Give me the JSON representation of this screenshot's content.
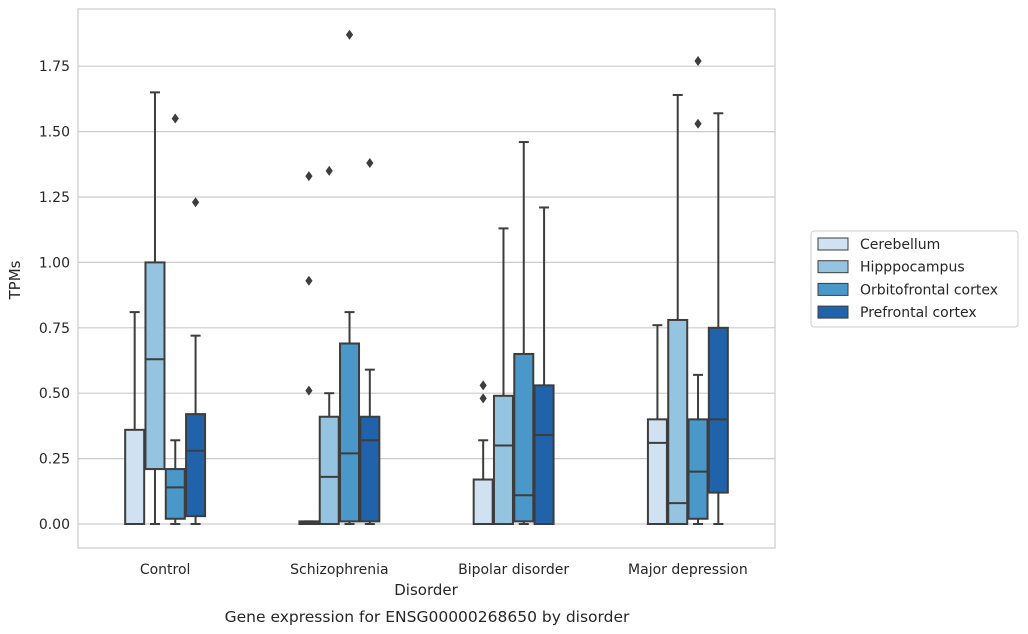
{
  "chart_data": {
    "type": "box",
    "title": "",
    "caption": "Gene expression for ENSG00000268650 by disorder",
    "xlabel": "Disorder",
    "ylabel": "TPMs",
    "ylim": [
      -0.09,
      1.97
    ],
    "yticks": [
      "0.00",
      "0.25",
      "0.50",
      "0.75",
      "1.00",
      "1.25",
      "1.50",
      "1.75"
    ],
    "grid": "horizontal",
    "legend_position": "right",
    "categories": [
      "Control",
      "Schizophrenia",
      "Bipolar disorder",
      "Major depression"
    ],
    "series": [
      {
        "name": "Cerebellum",
        "color": "#d0e1f2",
        "boxes": [
          {
            "whislo": 0,
            "q1": 0,
            "med": 0,
            "q3": 0.36,
            "whishi": 0.81,
            "fliers": []
          },
          {
            "whislo": 0,
            "q1": 0,
            "med": 0.005,
            "q3": 0.01,
            "whishi": 0.01,
            "fliers": [
              0.51,
              0.93,
              1.33
            ]
          },
          {
            "whislo": 0,
            "q1": 0,
            "med": 0,
            "q3": 0.17,
            "whishi": 0.32,
            "fliers": [
              0.48,
              0.53
            ]
          },
          {
            "whislo": 0,
            "q1": 0,
            "med": 0.31,
            "q3": 0.4,
            "whishi": 0.76,
            "fliers": []
          }
        ]
      },
      {
        "name": "Hipppocampus",
        "color": "#94c4df",
        "boxes": [
          {
            "whislo": 0,
            "q1": 0.21,
            "med": 0.63,
            "q3": 1.0,
            "whishi": 1.65,
            "fliers": []
          },
          {
            "whislo": 0,
            "q1": 0,
            "med": 0.18,
            "q3": 0.41,
            "whishi": 0.5,
            "fliers": [
              1.35
            ]
          },
          {
            "whislo": 0,
            "q1": 0,
            "med": 0.3,
            "q3": 0.49,
            "whishi": 1.13,
            "fliers": []
          },
          {
            "whislo": 0,
            "q1": 0,
            "med": 0.08,
            "q3": 0.78,
            "whishi": 1.64,
            "fliers": []
          }
        ]
      },
      {
        "name": "Orbitofrontal cortex",
        "color": "#4a98c9",
        "boxes": [
          {
            "whislo": 0,
            "q1": 0.02,
            "med": 0.14,
            "q3": 0.21,
            "whishi": 0.32,
            "fliers": [
              1.55
            ]
          },
          {
            "whislo": 0,
            "q1": 0.01,
            "med": 0.27,
            "q3": 0.69,
            "whishi": 0.81,
            "fliers": [
              1.87
            ]
          },
          {
            "whislo": 0,
            "q1": 0.01,
            "med": 0.11,
            "q3": 0.65,
            "whishi": 1.46,
            "fliers": []
          },
          {
            "whislo": 0,
            "q1": 0.02,
            "med": 0.2,
            "q3": 0.4,
            "whishi": 0.57,
            "fliers": [
              1.53,
              1.77
            ]
          }
        ]
      },
      {
        "name": "Prefrontal cortex",
        "color": "#2163aa",
        "boxes": [
          {
            "whislo": 0,
            "q1": 0.03,
            "med": 0.28,
            "q3": 0.42,
            "whishi": 0.72,
            "fliers": [
              1.23
            ]
          },
          {
            "whislo": 0,
            "q1": 0.01,
            "med": 0.32,
            "q3": 0.41,
            "whishi": 0.59,
            "fliers": [
              1.38
            ]
          },
          {
            "whislo": 0,
            "q1": 0,
            "med": 0.34,
            "q3": 0.53,
            "whishi": 1.21,
            "fliers": []
          },
          {
            "whislo": 0,
            "q1": 0.12,
            "med": 0.4,
            "q3": 0.75,
            "whishi": 1.57,
            "fliers": []
          }
        ]
      }
    ]
  }
}
